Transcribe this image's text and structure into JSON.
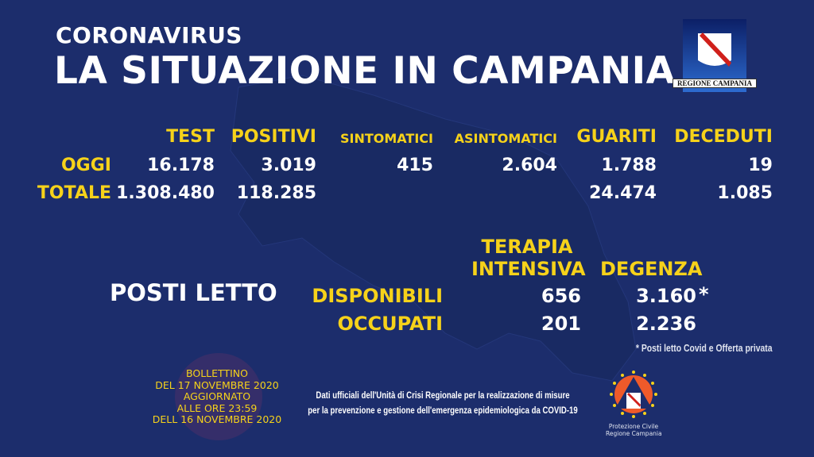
{
  "header": {
    "kicker": "CORONAVIRUS",
    "title": "LA SITUAZIONE IN CAMPANIA",
    "logo_text": "REGIONE CAMPANIA"
  },
  "table": {
    "columns": [
      "TEST",
      "POSITIVI",
      "SINTOMATICI",
      "ASINTOMATICI",
      "GUARITI",
      "DECEDUTI"
    ],
    "rows": [
      {
        "label": "OGGI",
        "values": [
          "16.178",
          "3.019",
          "415",
          "2.604",
          "1.788",
          "19"
        ]
      },
      {
        "label": "TOTALE",
        "values": [
          "1.308.480",
          "118.285",
          "",
          "",
          "24.474",
          "1.085"
        ]
      }
    ]
  },
  "beds": {
    "title": "POSTI LETTO",
    "col1_line1": "TERAPIA",
    "col1_line2": "INTENSIVA",
    "col2": "DEGENZA",
    "rows": [
      {
        "label": "DISPONIBILI",
        "ti": "656",
        "degenza": "3.160",
        "mark": "*"
      },
      {
        "label": "OCCUPATI",
        "ti": "201",
        "degenza": "2.236",
        "mark": ""
      }
    ],
    "footnote": "* Posti letto Covid e Offerta privata"
  },
  "bulletin": [
    "BOLLETTINO",
    "DEL 17 NOVEMBRE 2020",
    "AGGIORNATO",
    "ALLE ORE 23:59",
    "DELL 16 NOVEMBRE 2020"
  ],
  "source": [
    "Dati ufficiali dell'Unità di Crisi Regionale per la realizzazione di misure",
    "per la prevenzione e gestione dell'emergenza epidemiologica da COVID-19"
  ],
  "protezione": {
    "line1": "Protezione Civile",
    "line2": "Regione Campania"
  },
  "colors": {
    "background": "#1c2d6c",
    "accent": "#f6d21a",
    "text": "#ffffff"
  }
}
